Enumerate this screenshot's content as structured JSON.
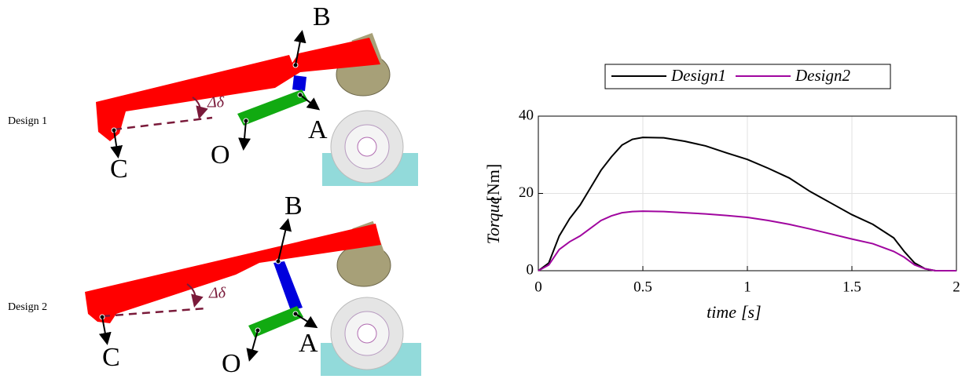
{
  "diagrams": [
    {
      "label": "Design 1",
      "points": {
        "B": "B",
        "A": "A",
        "O": "O",
        "C": "C"
      },
      "angle": "Δδ"
    },
    {
      "label": "Design 2",
      "points": {
        "B": "B",
        "A": "A",
        "O": "O",
        "C": "C"
      },
      "angle": "Δδ"
    }
  ],
  "chart_data": {
    "type": "line",
    "xlabel": "time",
    "xlabel_unit": "[s]",
    "ylabel": "Torque",
    "ylabel_unit": "[Nm]",
    "x": [
      0,
      0.05,
      0.1,
      0.15,
      0.2,
      0.25,
      0.3,
      0.35,
      0.4,
      0.45,
      0.5,
      0.6,
      0.7,
      0.8,
      0.9,
      1.0,
      1.1,
      1.2,
      1.3,
      1.4,
      1.5,
      1.6,
      1.7,
      1.75,
      1.8,
      1.85,
      1.9,
      1.95,
      2.0
    ],
    "series": [
      {
        "name": "Design1",
        "color": "#000000",
        "values": [
          0,
          2,
          9,
          13.5,
          17,
          21.5,
          26,
          29.5,
          32.5,
          34,
          34.5,
          34.4,
          33.5,
          32.3,
          30.5,
          28.8,
          26.5,
          24,
          20.5,
          17.5,
          14.5,
          12,
          8.5,
          5,
          2,
          0.5,
          0,
          0,
          0
        ]
      },
      {
        "name": "Design2",
        "color": "#a0069f",
        "values": [
          0,
          1.5,
          5.5,
          7.5,
          9,
          11,
          13,
          14.2,
          15,
          15.3,
          15.4,
          15.3,
          15,
          14.7,
          14.3,
          13.8,
          13,
          12,
          10.8,
          9.5,
          8.2,
          7,
          5,
          3.5,
          1.5,
          0.5,
          0,
          0,
          0
        ]
      }
    ],
    "xlim": [
      0,
      2
    ],
    "xticks": [
      0,
      0.5,
      1,
      1.5,
      2
    ],
    "ylim": [
      0,
      40
    ],
    "yticks": [
      0,
      20,
      40
    ],
    "grid": true,
    "legend": "top"
  }
}
